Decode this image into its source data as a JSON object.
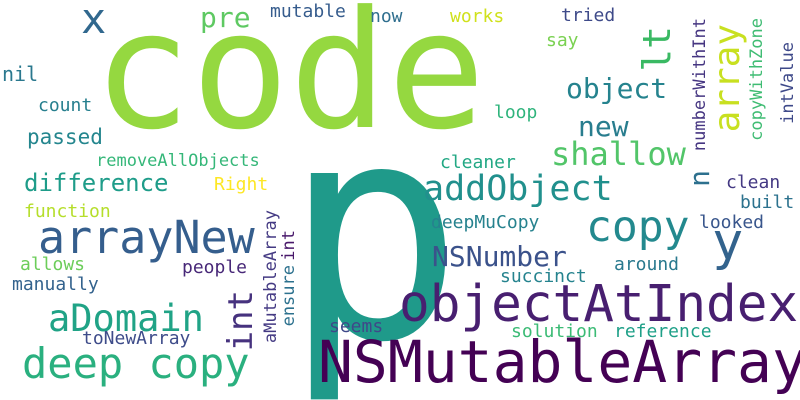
{
  "words": {
    "code": {
      "text": "code",
      "color": "#95d840"
    },
    "p": {
      "text": "p",
      "color": "#1f9a8a"
    },
    "nsmutablearray": {
      "text": "NSMutableArray",
      "color": "#440154"
    },
    "objectatindex": {
      "text": "objectAtIndex",
      "color": "#481f70"
    },
    "arraynew": {
      "text": "arrayNew",
      "color": "#355e8d"
    },
    "deep_copy": {
      "text": "deep copy",
      "color": "#2ab07f"
    },
    "copy": {
      "text": "copy",
      "color": "#23898e"
    },
    "adomain": {
      "text": "aDomain",
      "color": "#20a386"
    },
    "addobject": {
      "text": "addObject",
      "color": "#21908d"
    },
    "shallow": {
      "text": "shallow",
      "color": "#52c569"
    },
    "array": {
      "text": "array",
      "color": "#c8e020"
    },
    "object": {
      "text": "object",
      "color": "#25838e"
    },
    "new": {
      "text": "new",
      "color": "#287d8e"
    },
    "int_big": {
      "text": "int",
      "color": "#46327e"
    },
    "y": {
      "text": "y",
      "color": "#33638d"
    },
    "x": {
      "text": "x",
      "color": "#31688e"
    },
    "lt": {
      "text": "lt",
      "color": "#3ab963"
    },
    "n": {
      "text": "n",
      "color": "#2d708e"
    },
    "difference": {
      "text": "difference",
      "color": "#1e9c89"
    },
    "nsnumber": {
      "text": "NSNumber",
      "color": "#3b528b"
    },
    "pre": {
      "text": "pre",
      "color": "#5ec962"
    },
    "mutable": {
      "text": "mutable",
      "color": "#365c8d"
    },
    "now": {
      "text": "now",
      "color": "#2e6e8e"
    },
    "works": {
      "text": "works",
      "color": "#d0e11c"
    },
    "tried": {
      "text": "tried",
      "color": "#3e4a89"
    },
    "say": {
      "text": "say",
      "color": "#7ad151"
    },
    "nil": {
      "text": "nil",
      "color": "#2a788e"
    },
    "count": {
      "text": "count",
      "color": "#277f8e"
    },
    "loop": {
      "text": "loop",
      "color": "#2fb47c"
    },
    "passed": {
      "text": "passed",
      "color": "#24868e"
    },
    "removeallobjects": {
      "text": "removeAllObjects",
      "color": "#35b779"
    },
    "cleaner": {
      "text": "cleaner",
      "color": "#22a884"
    },
    "clean": {
      "text": "clean",
      "color": "#443983"
    },
    "right": {
      "text": "Right",
      "color": "#fde725"
    },
    "function": {
      "text": "function",
      "color": "#b5de2b"
    },
    "deepmucopy": {
      "text": "deepMuCopy",
      "color": "#26828e"
    },
    "looked": {
      "text": "looked",
      "color": "#39568c"
    },
    "built": {
      "text": "built",
      "color": "#2c728e"
    },
    "allows": {
      "text": "allows",
      "color": "#6ccd5a"
    },
    "people": {
      "text": "people",
      "color": "#482878"
    },
    "around": {
      "text": "around",
      "color": "#29798e"
    },
    "succinct": {
      "text": "succinct",
      "color": "#25838e"
    },
    "manually": {
      "text": "manually",
      "color": "#33628d"
    },
    "seems": {
      "text": "seems",
      "color": "#3f4889"
    },
    "solution": {
      "text": "solution",
      "color": "#3bbb75"
    },
    "reference": {
      "text": "reference",
      "color": "#1fa088"
    },
    "tonewarray": {
      "text": "toNewArray",
      "color": "#3e4c8a"
    },
    "numberwithint": {
      "text": "numberWithInt",
      "color": "#453581"
    },
    "copywithzone": {
      "text": "copyWithZone",
      "color": "#3fbc73"
    },
    "intvalue": {
      "text": "intValue",
      "color": "#3e4989"
    },
    "amutablearray": {
      "text": "aMutableArray",
      "color": "#443a83"
    },
    "ensure": {
      "text": "ensure",
      "color": "#2c718e"
    },
    "int_small": {
      "text": "int",
      "color": "#48186a"
    }
  }
}
